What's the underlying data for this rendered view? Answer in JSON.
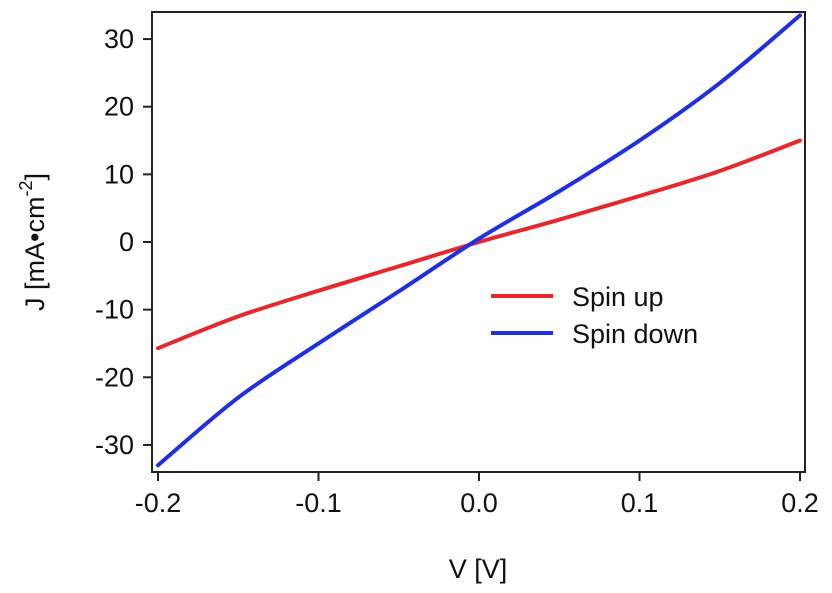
{
  "chart_data": {
    "type": "line",
    "xlabel": "V [V]",
    "ylabel_main": "J [mA•cm",
    "ylabel_exp": "-2",
    "ylabel_close": "]",
    "xlim": [
      -0.2,
      0.2
    ],
    "ylim": [
      -34,
      34
    ],
    "xticks": [
      {
        "value": -0.2,
        "label": "-0.2"
      },
      {
        "value": -0.1,
        "label": "-0.1"
      },
      {
        "value": 0.0,
        "label": "0.0"
      },
      {
        "value": 0.1,
        "label": "0.1"
      },
      {
        "value": 0.2,
        "label": "0.2"
      }
    ],
    "yticks": [
      {
        "value": -30,
        "label": "-30"
      },
      {
        "value": -20,
        "label": "-20"
      },
      {
        "value": -10,
        "label": "-10"
      },
      {
        "value": 0,
        "label": "0"
      },
      {
        "value": 10,
        "label": "10"
      },
      {
        "value": 20,
        "label": "20"
      },
      {
        "value": 30,
        "label": "30"
      }
    ],
    "grid": false,
    "legend_position": "center-right",
    "series": [
      {
        "name": "Spin up",
        "color": "#e8272b",
        "x": [
          -0.2,
          -0.15,
          -0.1,
          -0.05,
          0.0,
          0.05,
          0.1,
          0.15,
          0.2
        ],
        "y": [
          -15.7,
          -11.0,
          -7.2,
          -3.6,
          0.0,
          3.3,
          6.8,
          10.5,
          15.0
        ]
      },
      {
        "name": "Spin down",
        "color": "#1f2fe6",
        "x": [
          -0.2,
          -0.15,
          -0.1,
          -0.05,
          0.0,
          0.05,
          0.1,
          0.15,
          0.2
        ],
        "y": [
          -33.0,
          -23.0,
          -15.0,
          -7.3,
          0.5,
          7.5,
          15.0,
          23.5,
          33.5
        ]
      }
    ]
  }
}
